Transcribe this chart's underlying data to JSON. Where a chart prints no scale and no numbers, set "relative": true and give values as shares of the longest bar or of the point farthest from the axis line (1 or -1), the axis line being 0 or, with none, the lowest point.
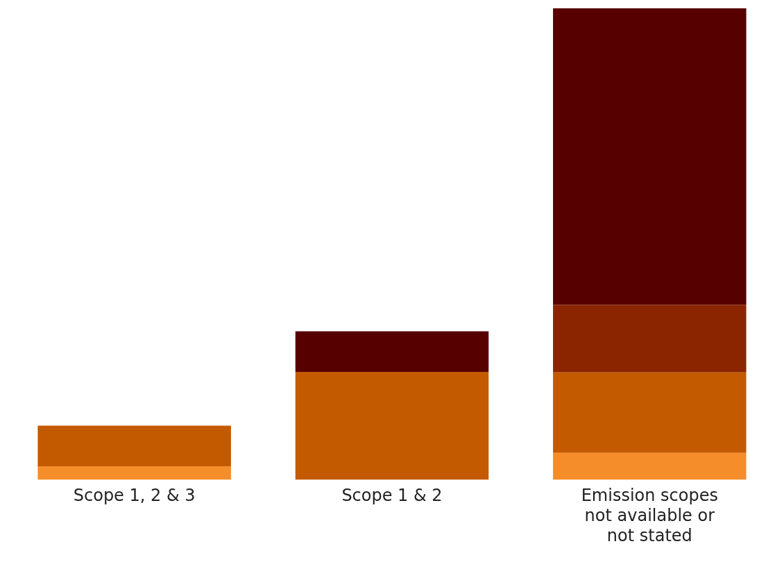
{
  "chart_data": {
    "type": "bar",
    "stacked": true,
    "relative": true,
    "categories": [
      "Scope 1, 2 & 3",
      "Scope 1 & 2",
      "Emission scopes not available or not stated"
    ],
    "series": [
      {
        "color": "#f58d2a",
        "values": [
          0.029,
          null,
          0.057
        ]
      },
      {
        "color": "#c45a00",
        "values": [
          0.086,
          0.229,
          0.171
        ]
      },
      {
        "color": "#8b2500",
        "values": [
          null,
          null,
          0.143
        ]
      },
      {
        "color": "#570000",
        "values": [
          null,
          0.086,
          0.629
        ]
      }
    ],
    "grid": false,
    "legend": false
  }
}
